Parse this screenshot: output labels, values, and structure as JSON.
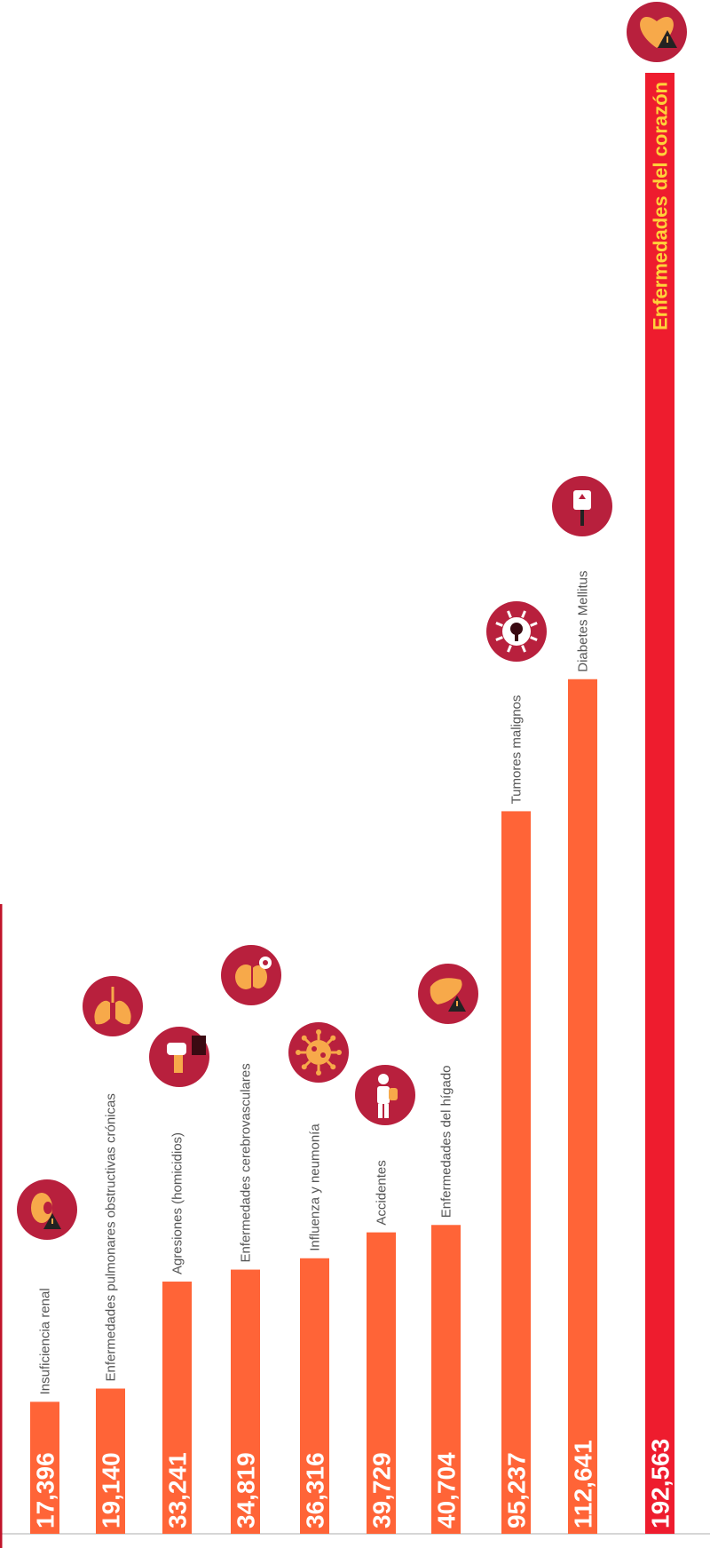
{
  "chart_data": {
    "type": "bar",
    "orientation": "vertical",
    "categories": [
      "Insuficiencia renal",
      "Enfermedades pulmonares obstructivas crónicas",
      "Agresiones (homicidios)",
      "Enfermedades cerebrovasculares",
      "Influenza y neumonía",
      "Accidentes",
      "Enfermedades del hígado",
      "Tumores malignos",
      "Diabetes Mellitus",
      "Enfermedades del corazón"
    ],
    "values": [
      17396,
      19140,
      33241,
      34819,
      36316,
      39729,
      40704,
      95237,
      112641,
      192563
    ],
    "value_labels": [
      "17,396",
      "19,140",
      "33,241",
      "34,819",
      "36,316",
      "39,729",
      "40,704",
      "95,237",
      "112,641",
      "192,563"
    ],
    "icons": [
      "kidney-icon",
      "lungs-icon",
      "fist-icon",
      "brain-icon",
      "virus-icon",
      "injured-person-icon",
      "liver-icon",
      "tumor-cell-icon",
      "insulin-pen-icon",
      "heart-icon"
    ],
    "ylim": [
      0,
      192563
    ],
    "colors": {
      "bar": "#ff6437",
      "bar_highlight": "#ee1c2e",
      "icon_circle": "#b8203d",
      "icon_symbol": "#f7a94a",
      "highlight_label": "#ffd23a",
      "accent_line": "#c0142a"
    },
    "grid": false,
    "legend": "none"
  }
}
